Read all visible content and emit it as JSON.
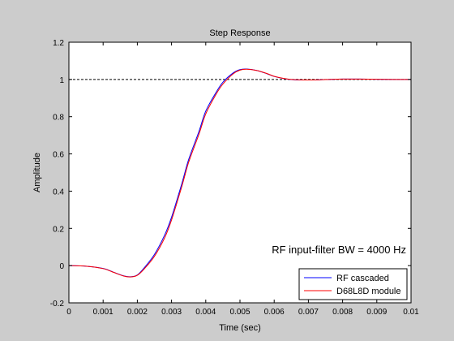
{
  "chart_data": {
    "type": "line",
    "title": "Step Response",
    "xlabel": "Time (sec)",
    "ylabel": "Amplitude",
    "xlim": [
      0,
      0.01
    ],
    "ylim": [
      -0.2,
      1.2
    ],
    "xticks": [
      0,
      0.001,
      0.002,
      0.003,
      0.004,
      0.005,
      0.006,
      0.007,
      0.008,
      0.009,
      0.01
    ],
    "xtick_labels": [
      "0",
      "0.001",
      "0.002",
      "0.003",
      "0.004",
      "0.005",
      "0.006",
      "0.007",
      "0.008",
      "0.009",
      "0.01"
    ],
    "yticks": [
      -0.2,
      0,
      0.2,
      0.4,
      0.6,
      0.8,
      1,
      1.2
    ],
    "ytick_labels": [
      "-0.2",
      "0",
      "0.2",
      "0.4",
      "0.6",
      "0.8",
      "1",
      "1.2"
    ],
    "grid": false,
    "legend_position": "bottom-right",
    "reference_line": {
      "y": 1,
      "style": "dashed",
      "color": "#000000"
    },
    "annotation": "RF input-filter BW = 4000 Hz",
    "series": [
      {
        "name": "RF cascaded",
        "color": "#0000ff",
        "x": [
          0,
          0.0005,
          0.001,
          0.0013,
          0.0016,
          0.0018,
          0.002,
          0.0022,
          0.0025,
          0.0028,
          0.003,
          0.0033,
          0.0035,
          0.0038,
          0.004,
          0.0043,
          0.0045,
          0.0048,
          0.005,
          0.0052,
          0.0055,
          0.0058,
          0.006,
          0.0063,
          0.0066,
          0.007,
          0.0073,
          0.0076,
          0.008,
          0.0085,
          0.009,
          0.0095,
          0.01
        ],
        "y": [
          0,
          -0.003,
          -0.015,
          -0.035,
          -0.055,
          -0.06,
          -0.05,
          -0.012,
          0.06,
          0.165,
          0.26,
          0.44,
          0.57,
          0.72,
          0.83,
          0.93,
          0.985,
          1.035,
          1.053,
          1.056,
          1.048,
          1.03,
          1.016,
          1.004,
          0.998,
          0.997,
          0.998,
          1.0,
          1.002,
          1.002,
          1.001,
          1.0,
          1.0
        ]
      },
      {
        "name": "D68L8D module",
        "color": "#ff0000",
        "x": [
          0,
          0.0005,
          0.001,
          0.0013,
          0.0016,
          0.0018,
          0.002,
          0.0022,
          0.0025,
          0.0028,
          0.003,
          0.0033,
          0.0035,
          0.0038,
          0.004,
          0.0043,
          0.0045,
          0.0048,
          0.005,
          0.0052,
          0.0055,
          0.0058,
          0.006,
          0.0063,
          0.0066,
          0.007,
          0.0073,
          0.0076,
          0.008,
          0.0085,
          0.009,
          0.0095,
          0.01
        ],
        "y": [
          0,
          -0.003,
          -0.016,
          -0.036,
          -0.056,
          -0.061,
          -0.052,
          -0.018,
          0.05,
          0.15,
          0.245,
          0.425,
          0.555,
          0.705,
          0.815,
          0.92,
          0.975,
          1.03,
          1.05,
          1.055,
          1.048,
          1.031,
          1.017,
          1.005,
          0.999,
          0.997,
          0.998,
          1.0,
          1.002,
          1.002,
          1.001,
          1.0,
          1.0
        ]
      }
    ]
  }
}
